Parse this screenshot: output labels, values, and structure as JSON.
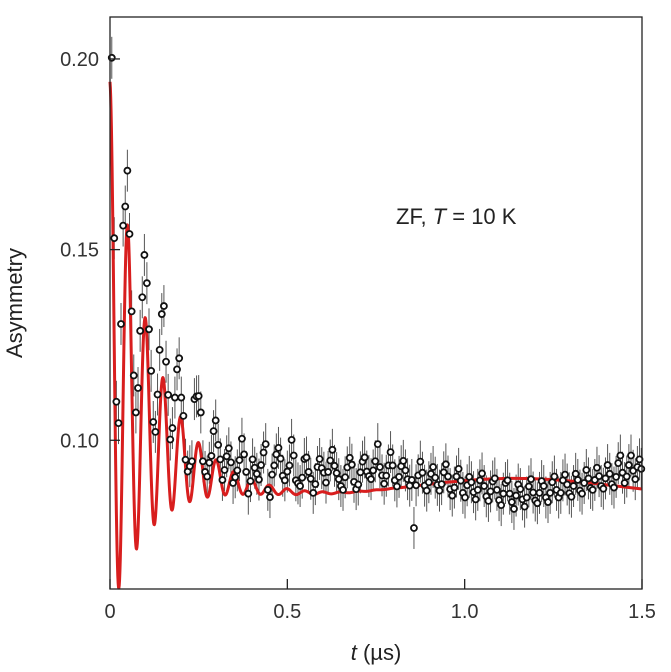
{
  "chart_data": {
    "type": "scatter",
    "xlabel_var": "t",
    "xlabel_unit": " (µs)",
    "ylabel": "Asymmetry",
    "annotation_prefix": "ZF, ",
    "annotation_var": "T",
    "annotation_suffix": " = 10 K",
    "xlim": [
      0,
      1.5
    ],
    "ylim": [
      0.061,
      0.211
    ],
    "x_ticks": [
      {
        "value": 0,
        "label": "0"
      },
      {
        "value": 0.5,
        "label": "0.5"
      },
      {
        "value": 1.0,
        "label": "1.0"
      },
      {
        "value": 1.5,
        "label": "1.5"
      }
    ],
    "y_ticks": [
      {
        "value": 0.1,
        "label": "0.10"
      },
      {
        "value": 0.15,
        "label": "0.15"
      },
      {
        "value": 0.2,
        "label": "0.20"
      }
    ],
    "grid": false,
    "series": [
      {
        "kind": "points",
        "color": "#111111",
        "error": 0.0055,
        "points": [
          [
            0.005,
            0.2003
          ],
          [
            0.012,
            0.153
          ],
          [
            0.018,
            0.1101
          ],
          [
            0.024,
            0.1045
          ],
          [
            0.031,
            0.1305
          ],
          [
            0.037,
            0.1563
          ],
          [
            0.043,
            0.1613
          ],
          [
            0.049,
            0.1707
          ],
          [
            0.055,
            0.1541
          ],
          [
            0.061,
            0.1338
          ],
          [
            0.067,
            0.117
          ],
          [
            0.073,
            0.1073
          ],
          [
            0.079,
            0.1137
          ],
          [
            0.085,
            0.1287
          ],
          [
            0.091,
            0.1375
          ],
          [
            0.097,
            0.1486
          ],
          [
            0.104,
            0.1412
          ],
          [
            0.11,
            0.1291
          ],
          [
            0.116,
            0.1182
          ],
          [
            0.122,
            0.1048
          ],
          [
            0.128,
            0.1022
          ],
          [
            0.134,
            0.112
          ],
          [
            0.14,
            0.1237
          ],
          [
            0.146,
            0.1331
          ],
          [
            0.152,
            0.1352
          ],
          [
            0.158,
            0.1206
          ],
          [
            0.164,
            0.1119
          ],
          [
            0.17,
            0.1002
          ],
          [
            0.176,
            0.1032
          ],
          [
            0.183,
            0.1112
          ],
          [
            0.189,
            0.1186
          ],
          [
            0.195,
            0.1215
          ],
          [
            0.201,
            0.1112
          ],
          [
            0.207,
            0.1064
          ],
          [
            0.213,
            0.0949
          ],
          [
            0.219,
            0.0918
          ],
          [
            0.225,
            0.0932
          ],
          [
            0.231,
            0.0945
          ],
          [
            0.238,
            0.1108
          ],
          [
            0.244,
            0.1115
          ],
          [
            0.25,
            0.1116
          ],
          [
            0.256,
            0.1073
          ],
          [
            0.262,
            0.0945
          ],
          [
            0.268,
            0.0917
          ],
          [
            0.274,
            0.0905
          ],
          [
            0.28,
            0.0941
          ],
          [
            0.286,
            0.0959
          ],
          [
            0.292,
            0.1024
          ],
          [
            0.298,
            0.1052
          ],
          [
            0.305,
            0.0988
          ],
          [
            0.311,
            0.095
          ],
          [
            0.317,
            0.0896
          ],
          [
            0.323,
            0.0922
          ],
          [
            0.329,
            0.0958
          ],
          [
            0.335,
            0.0979
          ],
          [
            0.341,
            0.0942
          ],
          [
            0.347,
            0.0888
          ],
          [
            0.353,
            0.0903
          ],
          [
            0.359,
            0.0921
          ],
          [
            0.365,
            0.0948
          ],
          [
            0.372,
            0.1004
          ],
          [
            0.378,
            0.0963
          ],
          [
            0.384,
            0.0917
          ],
          [
            0.39,
            0.086
          ],
          [
            0.396,
            0.0893
          ],
          [
            0.402,
            0.095
          ],
          [
            0.408,
            0.0928
          ],
          [
            0.414,
            0.0912
          ],
          [
            0.42,
            0.0897
          ],
          [
            0.426,
            0.0935
          ],
          [
            0.433,
            0.0968
          ],
          [
            0.439,
            0.099
          ],
          [
            0.445,
            0.087
          ],
          [
            0.451,
            0.0851
          ],
          [
            0.457,
            0.091
          ],
          [
            0.463,
            0.0934
          ],
          [
            0.469,
            0.0963
          ],
          [
            0.475,
            0.098
          ],
          [
            0.481,
            0.0952
          ],
          [
            0.487,
            0.0907
          ],
          [
            0.493,
            0.0895
          ],
          [
            0.5,
            0.0918
          ],
          [
            0.506,
            0.0934
          ],
          [
            0.512,
            0.1001
          ],
          [
            0.518,
            0.096
          ],
          [
            0.524,
            0.0895
          ],
          [
            0.53,
            0.0887
          ],
          [
            0.536,
            0.088
          ],
          [
            0.542,
            0.0902
          ],
          [
            0.548,
            0.0951
          ],
          [
            0.554,
            0.0955
          ],
          [
            0.56,
            0.0917
          ],
          [
            0.566,
            0.0899
          ],
          [
            0.573,
            0.0862
          ],
          [
            0.579,
            0.0885
          ],
          [
            0.585,
            0.093
          ],
          [
            0.591,
            0.0951
          ],
          [
            0.597,
            0.0927
          ],
          [
            0.603,
            0.0915
          ],
          [
            0.609,
            0.0889
          ],
          [
            0.615,
            0.0917
          ],
          [
            0.621,
            0.0947
          ],
          [
            0.627,
            0.0975
          ],
          [
            0.633,
            0.0933
          ],
          [
            0.639,
            0.0914
          ],
          [
            0.645,
            0.0898
          ],
          [
            0.651,
            0.088
          ],
          [
            0.657,
            0.087
          ],
          [
            0.663,
            0.0903
          ],
          [
            0.669,
            0.0929
          ],
          [
            0.676,
            0.0954
          ],
          [
            0.682,
            0.0936
          ],
          [
            0.688,
            0.0891
          ],
          [
            0.694,
            0.0872
          ],
          [
            0.7,
            0.0884
          ],
          [
            0.706,
            0.0916
          ],
          [
            0.712,
            0.0944
          ],
          [
            0.718,
            0.0955
          ],
          [
            0.724,
            0.0918
          ],
          [
            0.73,
            0.0906
          ],
          [
            0.736,
            0.0898
          ],
          [
            0.742,
            0.0921
          ],
          [
            0.748,
            0.0945
          ],
          [
            0.755,
            0.099
          ],
          [
            0.761,
            0.093
          ],
          [
            0.767,
            0.0908
          ],
          [
            0.773,
            0.0886
          ],
          [
            0.779,
            0.0907
          ],
          [
            0.785,
            0.0934
          ],
          [
            0.791,
            0.0969
          ],
          [
            0.797,
            0.0934
          ],
          [
            0.803,
            0.0895
          ],
          [
            0.809,
            0.0879
          ],
          [
            0.815,
            0.0904
          ],
          [
            0.821,
            0.0932
          ],
          [
            0.827,
            0.0946
          ],
          [
            0.833,
            0.0921
          ],
          [
            0.839,
            0.0898
          ],
          [
            0.845,
            0.0881
          ],
          [
            0.851,
            0.0896
          ],
          [
            0.857,
            0.077
          ],
          [
            0.863,
            0.0882
          ],
          [
            0.869,
            0.0908
          ],
          [
            0.875,
            0.0944
          ],
          [
            0.881,
            0.0915
          ],
          [
            0.887,
            0.0881
          ],
          [
            0.893,
            0.0868
          ],
          [
            0.899,
            0.089
          ],
          [
            0.905,
            0.0912
          ],
          [
            0.911,
            0.093
          ],
          [
            0.917,
            0.0902
          ],
          [
            0.923,
            0.0883
          ],
          [
            0.929,
            0.0868
          ],
          [
            0.935,
            0.0885
          ],
          [
            0.941,
            0.0916
          ],
          [
            0.947,
            0.0937
          ],
          [
            0.953,
            0.0905
          ],
          [
            0.959,
            0.0872
          ],
          [
            0.965,
            0.0855
          ],
          [
            0.971,
            0.0876
          ],
          [
            0.977,
            0.0905
          ],
          [
            0.983,
            0.0925
          ],
          [
            0.989,
            0.0894
          ],
          [
            0.995,
            0.0862
          ],
          [
            1.001,
            0.085
          ],
          [
            1.007,
            0.0882
          ],
          [
            1.013,
            0.0904
          ],
          [
            1.019,
            0.089
          ],
          [
            1.025,
            0.0864
          ],
          [
            1.031,
            0.0845
          ],
          [
            1.037,
            0.087
          ],
          [
            1.043,
            0.0895
          ],
          [
            1.049,
            0.0913
          ],
          [
            1.055,
            0.088
          ],
          [
            1.061,
            0.0853
          ],
          [
            1.067,
            0.0841
          ],
          [
            1.073,
            0.0866
          ],
          [
            1.079,
            0.0892
          ],
          [
            1.085,
            0.09
          ],
          [
            1.091,
            0.087
          ],
          [
            1.097,
            0.0843
          ],
          [
            1.103,
            0.083
          ],
          [
            1.109,
            0.086
          ],
          [
            1.115,
            0.0888
          ],
          [
            1.121,
            0.0895
          ],
          [
            1.127,
            0.086
          ],
          [
            1.133,
            0.0838
          ],
          [
            1.139,
            0.082
          ],
          [
            1.145,
            0.0855
          ],
          [
            1.151,
            0.0884
          ],
          [
            1.157,
            0.0872
          ],
          [
            1.163,
            0.0845
          ],
          [
            1.169,
            0.0826
          ],
          [
            1.175,
            0.085
          ],
          [
            1.181,
            0.0879
          ],
          [
            1.187,
            0.0898
          ],
          [
            1.193,
            0.0863
          ],
          [
            1.199,
            0.0842
          ],
          [
            1.205,
            0.0835
          ],
          [
            1.211,
            0.0862
          ],
          [
            1.217,
            0.0893
          ],
          [
            1.223,
            0.088
          ],
          [
            1.229,
            0.085
          ],
          [
            1.235,
            0.0838
          ],
          [
            1.241,
            0.0862
          ],
          [
            1.247,
            0.089
          ],
          [
            1.253,
            0.0905
          ],
          [
            1.259,
            0.087
          ],
          [
            1.265,
            0.085
          ],
          [
            1.271,
            0.0862
          ],
          [
            1.277,
            0.0895
          ],
          [
            1.283,
            0.091
          ],
          [
            1.289,
            0.0884
          ],
          [
            1.295,
            0.0861
          ],
          [
            1.301,
            0.0852
          ],
          [
            1.307,
            0.088
          ],
          [
            1.313,
            0.0912
          ],
          [
            1.319,
            0.0896
          ],
          [
            1.325,
            0.0868
          ],
          [
            1.331,
            0.086
          ],
          [
            1.337,
            0.0888
          ],
          [
            1.343,
            0.0922
          ],
          [
            1.349,
            0.09
          ],
          [
            1.355,
            0.0875
          ],
          [
            1.361,
            0.087
          ],
          [
            1.367,
            0.0896
          ],
          [
            1.373,
            0.0928
          ],
          [
            1.379,
            0.0906
          ],
          [
            1.385,
            0.088
          ],
          [
            1.391,
            0.0873
          ],
          [
            1.397,
            0.09
          ],
          [
            1.403,
            0.0935
          ],
          [
            1.409,
            0.0912
          ],
          [
            1.415,
            0.0885
          ],
          [
            1.421,
            0.0876
          ],
          [
            1.427,
            0.0904
          ],
          [
            1.433,
            0.094
          ],
          [
            1.439,
            0.096
          ],
          [
            1.445,
            0.0915
          ],
          [
            1.451,
            0.0888
          ],
          [
            1.457,
            0.0905
          ],
          [
            1.463,
            0.0935
          ],
          [
            1.469,
            0.096
          ],
          [
            1.475,
            0.092
          ],
          [
            1.481,
            0.0898
          ],
          [
            1.487,
            0.093
          ],
          [
            1.493,
            0.095
          ],
          [
            1.498,
            0.0925
          ]
        ]
      },
      {
        "kind": "fit",
        "color": "#d81e1e",
        "model": "0.088 + 0.002*cos(5.5t) + e^(-9t)*(0.034 + 0.070*cos(125.7t))"
      }
    ]
  }
}
